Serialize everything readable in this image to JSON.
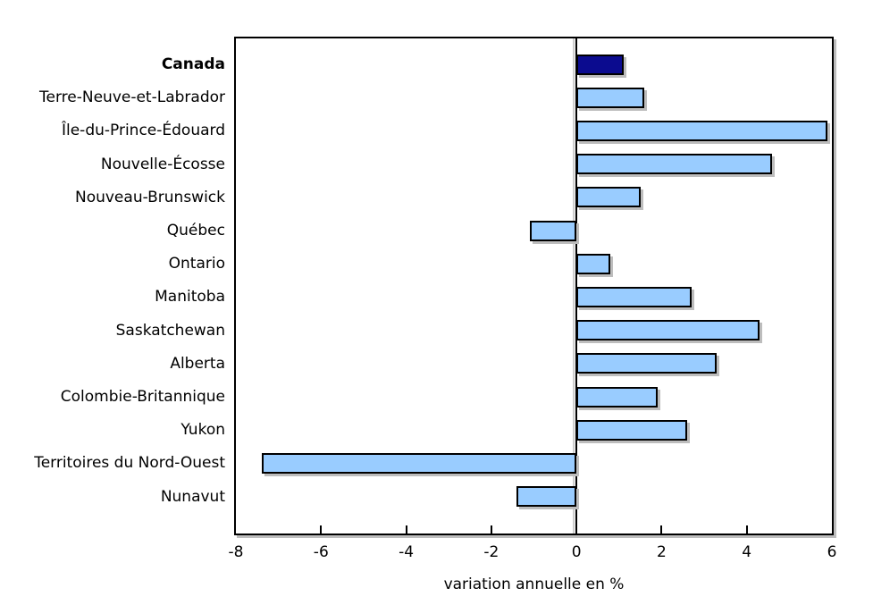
{
  "chart_data": {
    "type": "bar",
    "orientation": "horizontal",
    "title": "",
    "xlabel": "variation annuelle en %",
    "xlim": [
      -8,
      6
    ],
    "xticks": [
      -8,
      -6,
      -4,
      -2,
      0,
      2,
      4,
      6
    ],
    "grid": false,
    "legend": "none",
    "categories": [
      "Canada",
      "Terre-Neuve-et-Labrador",
      "Île-du-Prince-Édouard",
      "Nouvelle-Écosse",
      "Nouveau-Brunswick",
      "Québec",
      "Ontario",
      "Manitoba",
      "Saskatchewan",
      "Alberta",
      "Colombie-Britannique",
      "Yukon",
      "Territoires du Nord-Ouest",
      "Nunavut"
    ],
    "values": [
      1.1,
      1.6,
      5.9,
      4.6,
      1.5,
      -1.1,
      0.8,
      2.7,
      4.3,
      3.3,
      1.9,
      2.6,
      -7.4,
      -1.4
    ],
    "highlight": {
      "category": "Canada",
      "index": 0,
      "label_bold": true
    },
    "colors": {
      "bar_fill": "#99ccff",
      "bar_highlight_fill": "#0b0b8f",
      "bar_border": "#000000",
      "axis": "#000000",
      "shadow": "#bdbdbd",
      "background": "#ffffff",
      "text": "#000000"
    }
  }
}
